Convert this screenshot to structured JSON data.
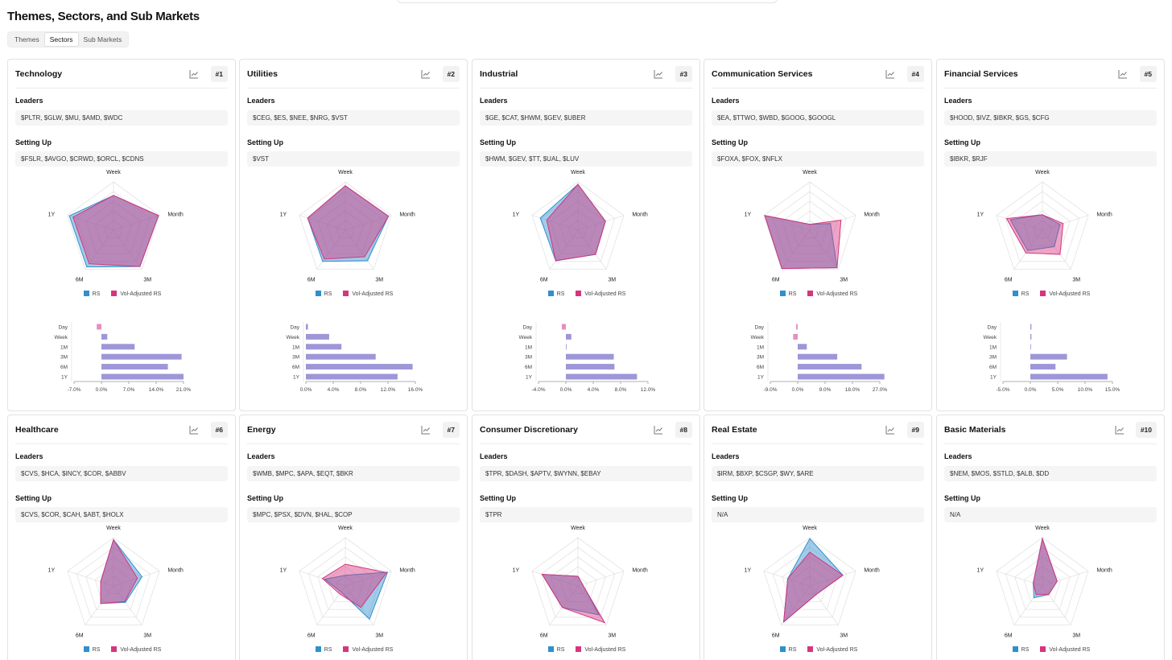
{
  "page": {
    "title": "Themes, Sectors, and Sub Markets",
    "tabs": [
      {
        "label": "Themes",
        "active": false
      },
      {
        "label": "Sectors",
        "active": true
      },
      {
        "label": "Sub Markets",
        "active": false
      }
    ]
  },
  "labels": {
    "leaders": "Leaders",
    "setting_up": "Setting Up"
  },
  "colors": {
    "rs": "#2f8fcf",
    "vol_rs": "#d6357e",
    "overlap": "#9b8fd6",
    "bar_up": "#9d97d8",
    "bar_down": "#e58fbf",
    "grid": "#e3e3e3"
  },
  "radar_axes": [
    "Week",
    "Month",
    "3M",
    "6M",
    "1Y"
  ],
  "legend": {
    "rs": "RS",
    "vol_rs": "Vol-Adjusted RS"
  },
  "bar_rows": [
    "Day",
    "Week",
    "1M",
    "3M",
    "6M",
    "1Y"
  ],
  "cards": [
    {
      "title": "Technology",
      "rank": "#1",
      "leaders": "$PLTR, $GLW, $MU, $AMD, $WDC",
      "setting_up": "$FSLR, $AVGO, $CRWD, $ORCL, $CDNS",
      "rs": [
        0.72,
        0.98,
        0.93,
        0.94,
        0.96
      ],
      "vol_rs": [
        0.72,
        0.98,
        0.93,
        0.86,
        0.88
      ],
      "bars": {
        "values": [
          -1.2,
          1.5,
          8.5,
          20.5,
          17.0,
          21.0
        ],
        "ticks": [
          "-7.0%",
          "0.0%",
          "7.0%",
          "14.0%",
          "21.0%"
        ],
        "min": -7,
        "max": 21
      }
    },
    {
      "title": "Utilities",
      "rank": "#2",
      "leaders": "$CEG, $ES, $NEE, $NRG, $VST",
      "setting_up": "$VST",
      "rs": [
        0.92,
        0.94,
        0.78,
        0.8,
        0.82
      ],
      "vol_rs": [
        0.92,
        0.94,
        0.68,
        0.74,
        0.82
      ],
      "bars": {
        "values": [
          0.3,
          3.4,
          5.2,
          10.2,
          15.6,
          13.4
        ],
        "ticks": [
          "0.0%",
          "4.0%",
          "8.0%",
          "12.0%",
          "16.0%"
        ],
        "min": 0,
        "max": 16
      }
    },
    {
      "title": "Industrial",
      "rank": "#3",
      "leaders": "$GE, $CAT, $HWM, $GEV, $UBER",
      "setting_up": "$HWM, $GEV, $TT, $UAL, $LUV",
      "rs": [
        0.95,
        0.6,
        0.62,
        0.78,
        0.82
      ],
      "vol_rs": [
        0.95,
        0.6,
        0.62,
        0.78,
        0.68
      ],
      "bars": {
        "values": [
          -0.6,
          0.8,
          0.1,
          7.0,
          7.1,
          10.4
        ],
        "ticks": [
          "-4.0%",
          "0.0%",
          "4.0%",
          "8.0%",
          "12.0%"
        ],
        "min": -4,
        "max": 12
      }
    },
    {
      "title": "Communication Services",
      "rank": "#4",
      "leaders": "$EA, $TTWO, $WBD, $GOOG, $GOOGL",
      "setting_up": "$FOXA, $FOX, $NFLX",
      "rs": [
        0.12,
        0.45,
        0.96,
        0.98,
        0.98
      ],
      "vol_rs": [
        0.12,
        0.68,
        0.96,
        0.98,
        0.98
      ],
      "bars": {
        "values": [
          -0.5,
          -1.5,
          3.0,
          13.0,
          21.0,
          28.5
        ],
        "ticks": [
          "-9.0%",
          "0.0%",
          "9.0%",
          "18.0%",
          "27.0%"
        ],
        "min": -9,
        "max": 27
      }
    },
    {
      "title": "Financial Services",
      "rank": "#5",
      "leaders": "$HOOD, $IVZ, $IBKR, $GS, $CFG",
      "setting_up": "$IBKR, $RJF",
      "rs": [
        0.32,
        0.38,
        0.42,
        0.52,
        0.7
      ],
      "vol_rs": [
        0.32,
        0.45,
        0.62,
        0.58,
        0.78
      ],
      "bars": {
        "values": [
          0.2,
          0.2,
          0.05,
          6.7,
          4.6,
          14.1
        ],
        "ticks": [
          "-5.0%",
          "0.0%",
          "5.0%",
          "10.0%",
          "15.0%"
        ],
        "min": -5,
        "max": 15
      }
    },
    {
      "title": "Healthcare",
      "rank": "#6",
      "leaders": "$CVS, $HCA, $INCY, $COR, $ABBV",
      "setting_up": "$CVS, $COR, $CAH, $ABT, $HOLX",
      "rs": [
        0.96,
        0.62,
        0.42,
        0.45,
        0.28
      ],
      "vol_rs": [
        0.96,
        0.52,
        0.4,
        0.45,
        0.28
      ]
    },
    {
      "title": "Energy",
      "rank": "#7",
      "leaders": "$WMB, $MPC, $APA, $EQT, $BKR",
      "setting_up": "$MPC, $PSX, $DVN, $HAL, $COP",
      "rs": [
        0.22,
        0.92,
        0.85,
        0.15,
        0.45
      ],
      "vol_rs": [
        0.45,
        0.9,
        0.55,
        0.2,
        0.5
      ]
    },
    {
      "title": "Consumer Discretionary",
      "rank": "#8",
      "leaders": "$TPR, $DASH, $APTV, $WYNN, $EBAY",
      "setting_up": "$TPR",
      "rs": [
        0.2,
        0.1,
        0.74,
        0.55,
        0.78
      ],
      "vol_rs": [
        0.2,
        0.1,
        0.94,
        0.55,
        0.78
      ]
    },
    {
      "title": "Real Estate",
      "rank": "#9",
      "leaders": "$IRM, $BXP, $CSGP, $WY, $ARE",
      "setting_up": "N/A",
      "rs": [
        0.98,
        0.72,
        0.22,
        0.92,
        0.48
      ],
      "vol_rs": [
        0.7,
        0.72,
        0.22,
        0.92,
        0.48
      ]
    },
    {
      "title": "Basic Materials",
      "rank": "#10",
      "leaders": "$NEM, $MOS, $STLD, $ALB, $DD",
      "setting_up": "N/A",
      "rs": [
        0.98,
        0.32,
        0.22,
        0.3,
        0.2
      ],
      "vol_rs": [
        0.98,
        0.32,
        0.22,
        0.22,
        0.2
      ]
    }
  ]
}
